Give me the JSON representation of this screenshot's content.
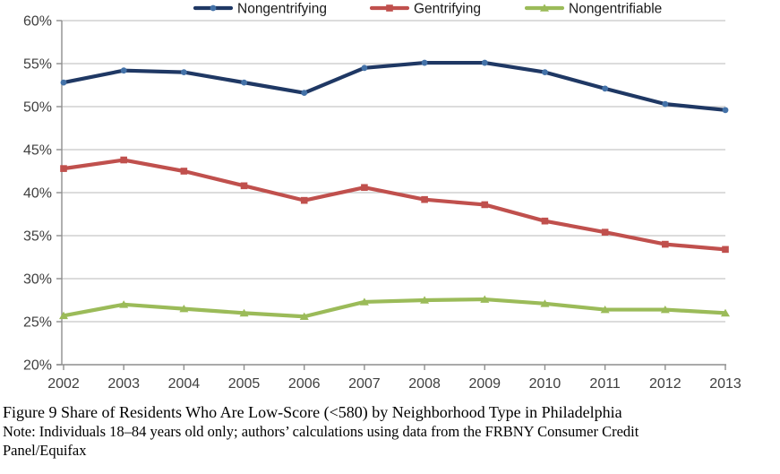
{
  "chart_data": {
    "type": "line",
    "categories": [
      "2002",
      "2003",
      "2004",
      "2005",
      "2006",
      "2007",
      "2008",
      "2009",
      "2010",
      "2011",
      "2012",
      "2013"
    ],
    "series": [
      {
        "name": "Nongentrifying",
        "color": "#1F3864",
        "marker": "circle",
        "marker_color": "#4472A8",
        "values": [
          52.8,
          54.2,
          54.0,
          52.8,
          51.6,
          54.5,
          55.1,
          55.1,
          54.0,
          52.1,
          50.3,
          49.6
        ]
      },
      {
        "name": "Gentrifying",
        "color": "#C0504D",
        "marker": "square",
        "marker_color": "#C0504D",
        "values": [
          42.8,
          43.8,
          42.5,
          40.8,
          39.1,
          40.6,
          39.2,
          38.6,
          36.7,
          35.4,
          34.0,
          33.4
        ]
      },
      {
        "name": "Nongentrifiable",
        "color": "#9BBB59",
        "marker": "triangle",
        "marker_color": "#9BBB59",
        "values": [
          25.7,
          27.0,
          26.5,
          26.0,
          25.6,
          27.3,
          27.5,
          27.6,
          27.1,
          26.4,
          26.4,
          26.0
        ]
      }
    ],
    "ylim": [
      20,
      60
    ],
    "ytick_step": 5,
    "ytick_labels": [
      "20%",
      "25%",
      "30%",
      "35%",
      "40%",
      "45%",
      "50%",
      "55%",
      "60%"
    ],
    "xlabel": "",
    "ylabel": "",
    "grid": true,
    "legend_position": "top",
    "style": {
      "gridline_color": "#C6C6C6",
      "axis_color": "#8E8E8E",
      "tick_color": "#8E8E8E",
      "label_color": "#404040",
      "legend_text_color": "#1a1a1a"
    }
  },
  "caption": {
    "title": "Figure 9 Share of Residents Who Are Low-Score (<580) by Neighborhood Type in Philadelphia",
    "note_line1": "Note: Individuals 18–84 years old only; authors’ calculations using data from the FRBNY Consumer Credit",
    "note_line2": "Panel/Equifax"
  }
}
